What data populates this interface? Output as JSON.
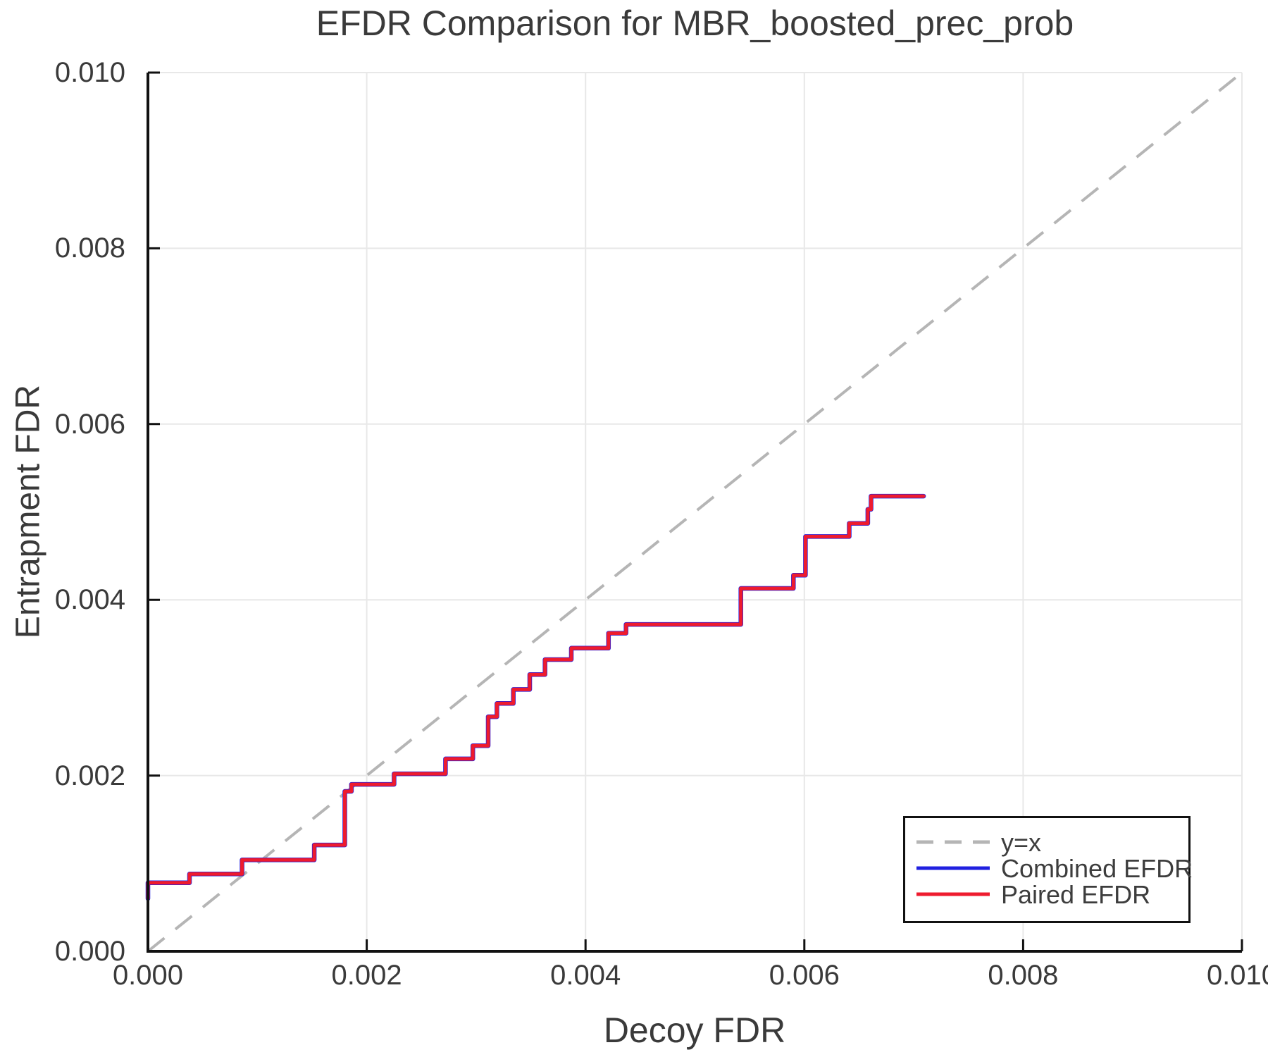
{
  "chart_data": {
    "type": "line",
    "title": "EFDR Comparison for MBR_boosted_prec_prob",
    "xlabel": "Decoy FDR",
    "ylabel": "Entrapment FDR",
    "xlim": [
      0.0,
      0.01
    ],
    "ylim": [
      0.0,
      0.01
    ],
    "grid": true,
    "legend_position": "bottom-right",
    "xticks": {
      "values": [
        0.0,
        0.002,
        0.004,
        0.006,
        0.008,
        0.01
      ],
      "labels": [
        "0.000",
        "0.002",
        "0.004",
        "0.006",
        "0.008",
        "0.010"
      ]
    },
    "yticks": {
      "values": [
        0.0,
        0.002,
        0.004,
        0.006,
        0.008,
        0.01
      ],
      "labels": [
        "0.000",
        "0.002",
        "0.004",
        "0.006",
        "0.008",
        "0.010"
      ]
    },
    "colors": {
      "identity_line": "#b5b5b5",
      "combined_efdr": "#2020e0",
      "paired_efdr": "#ee1b2e",
      "grid": "#e8e8e8",
      "axis": "#111111",
      "text": "#3a3a3a"
    },
    "series": [
      {
        "name": "y=x",
        "style": "dashed",
        "color": "#b5b5b5",
        "width": 4,
        "points": [
          [
            0.0,
            0.0
          ],
          [
            0.01,
            0.01
          ]
        ]
      },
      {
        "name": "Combined EFDR",
        "style": "solid",
        "color": "#2020e0",
        "width": 6.5,
        "points": [
          [
            0.0,
            0.0006
          ],
          [
            0.0,
            0.00078
          ],
          [
            0.00038,
            0.00078
          ],
          [
            0.00038,
            0.00088
          ],
          [
            0.00086,
            0.00088
          ],
          [
            0.00086,
            0.00104
          ],
          [
            0.00152,
            0.00104
          ],
          [
            0.00152,
            0.00121
          ],
          [
            0.0018,
            0.00121
          ],
          [
            0.0018,
            0.00182
          ],
          [
            0.00186,
            0.00182
          ],
          [
            0.00186,
            0.0019
          ],
          [
            0.00225,
            0.0019
          ],
          [
            0.00225,
            0.00202
          ],
          [
            0.00272,
            0.00202
          ],
          [
            0.00272,
            0.00219
          ],
          [
            0.00297,
            0.00219
          ],
          [
            0.00297,
            0.00234
          ],
          [
            0.00311,
            0.00234
          ],
          [
            0.00311,
            0.00267
          ],
          [
            0.00319,
            0.00267
          ],
          [
            0.00319,
            0.00282
          ],
          [
            0.00334,
            0.00282
          ],
          [
            0.00334,
            0.00298
          ],
          [
            0.00349,
            0.00298
          ],
          [
            0.00349,
            0.00315
          ],
          [
            0.00363,
            0.00315
          ],
          [
            0.00363,
            0.00332
          ],
          [
            0.00387,
            0.00332
          ],
          [
            0.00387,
            0.00345
          ],
          [
            0.00421,
            0.00345
          ],
          [
            0.00421,
            0.00362
          ],
          [
            0.00437,
            0.00362
          ],
          [
            0.00437,
            0.00372
          ],
          [
            0.00542,
            0.00372
          ],
          [
            0.00542,
            0.00413
          ],
          [
            0.0059,
            0.00413
          ],
          [
            0.0059,
            0.00428
          ],
          [
            0.00601,
            0.00428
          ],
          [
            0.00601,
            0.00472
          ],
          [
            0.00641,
            0.00472
          ],
          [
            0.00641,
            0.00487
          ],
          [
            0.00658,
            0.00487
          ],
          [
            0.00658,
            0.00503
          ],
          [
            0.00661,
            0.00503
          ],
          [
            0.00661,
            0.00518
          ],
          [
            0.00709,
            0.00518
          ]
        ]
      },
      {
        "name": "Paired EFDR",
        "style": "solid",
        "color": "#ee1b2e",
        "width": 5,
        "points": [
          [
            0.0,
            0.0006
          ],
          [
            0.0,
            0.00078
          ],
          [
            0.00038,
            0.00078
          ],
          [
            0.00038,
            0.00088
          ],
          [
            0.00086,
            0.00088
          ],
          [
            0.00086,
            0.00104
          ],
          [
            0.00152,
            0.00104
          ],
          [
            0.00152,
            0.00121
          ],
          [
            0.0018,
            0.00121
          ],
          [
            0.0018,
            0.00182
          ],
          [
            0.00186,
            0.00182
          ],
          [
            0.00186,
            0.0019
          ],
          [
            0.00225,
            0.0019
          ],
          [
            0.00225,
            0.00202
          ],
          [
            0.00272,
            0.00202
          ],
          [
            0.00272,
            0.00219
          ],
          [
            0.00297,
            0.00219
          ],
          [
            0.00297,
            0.00234
          ],
          [
            0.00311,
            0.00234
          ],
          [
            0.00311,
            0.00267
          ],
          [
            0.00319,
            0.00267
          ],
          [
            0.00319,
            0.00282
          ],
          [
            0.00334,
            0.00282
          ],
          [
            0.00334,
            0.00298
          ],
          [
            0.00349,
            0.00298
          ],
          [
            0.00349,
            0.00315
          ],
          [
            0.00363,
            0.00315
          ],
          [
            0.00363,
            0.00332
          ],
          [
            0.00387,
            0.00332
          ],
          [
            0.00387,
            0.00345
          ],
          [
            0.00421,
            0.00345
          ],
          [
            0.00421,
            0.00362
          ],
          [
            0.00437,
            0.00362
          ],
          [
            0.00437,
            0.00372
          ],
          [
            0.00542,
            0.00372
          ],
          [
            0.00542,
            0.00413
          ],
          [
            0.0059,
            0.00413
          ],
          [
            0.0059,
            0.00428
          ],
          [
            0.00601,
            0.00428
          ],
          [
            0.00601,
            0.00472
          ],
          [
            0.00641,
            0.00472
          ],
          [
            0.00641,
            0.00487
          ],
          [
            0.00658,
            0.00487
          ],
          [
            0.00658,
            0.00503
          ],
          [
            0.00661,
            0.00503
          ],
          [
            0.00661,
            0.00518
          ],
          [
            0.00709,
            0.00518
          ]
        ]
      }
    ]
  },
  "legend": {
    "items": [
      {
        "label": "y=x",
        "series": 0
      },
      {
        "label": "Combined EFDR",
        "series": 1
      },
      {
        "label": "Paired EFDR",
        "series": 2
      }
    ]
  }
}
